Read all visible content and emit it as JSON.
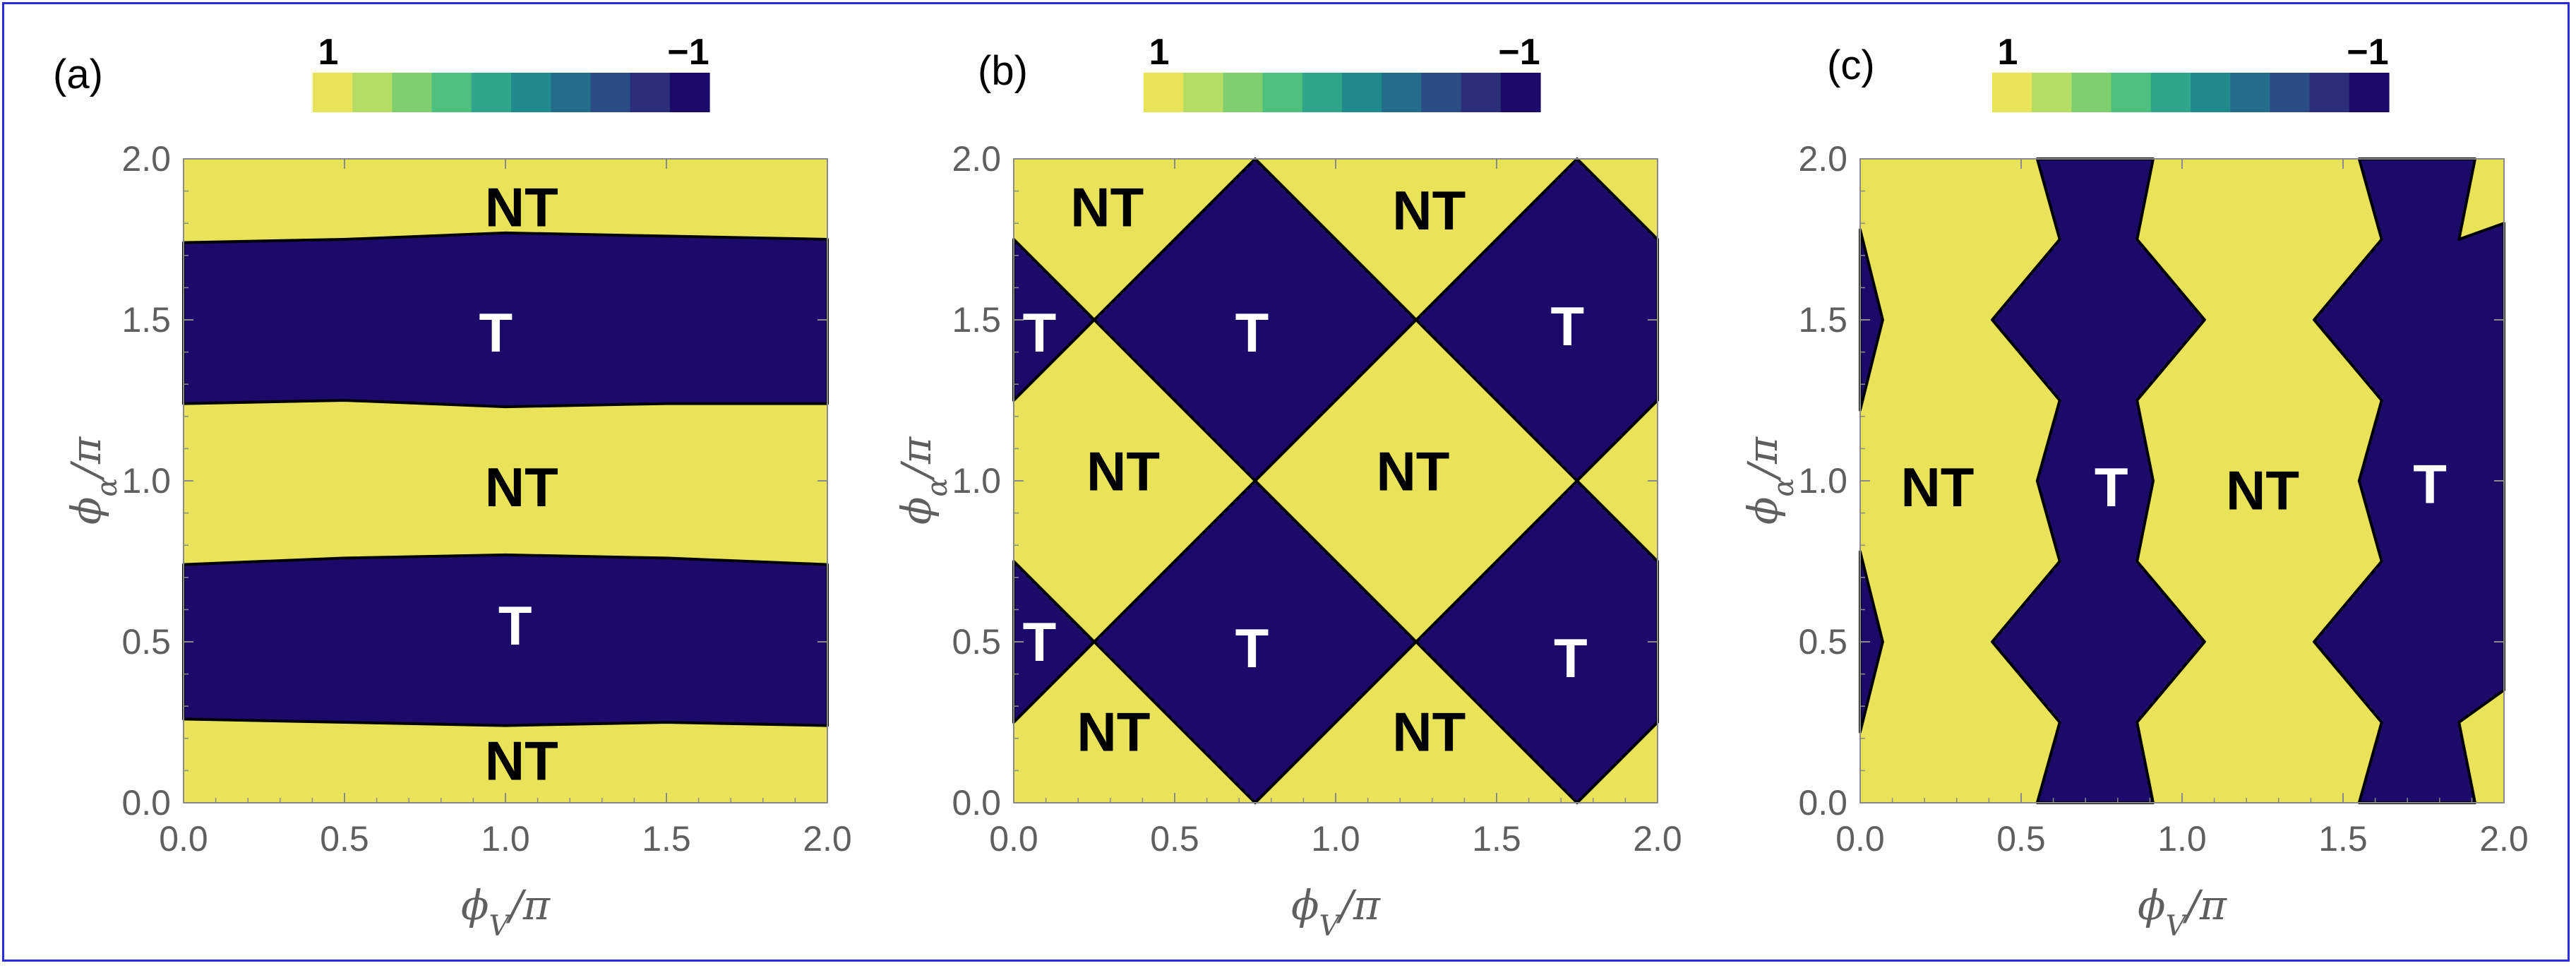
{
  "colors": {
    "nontopological": "#e9e35a",
    "topological": "#1b0a6a",
    "axis": "#8a8a8a",
    "tick_text": "#5f5f5f",
    "border": "#2a2ae0"
  },
  "colorbar": {
    "max_label": "1",
    "min_label": "−1",
    "swatches": [
      "#e9e35a",
      "#b5dc63",
      "#7fcf6f",
      "#4dc080",
      "#2fa68a",
      "#218a8c",
      "#236c8a",
      "#2a4d86",
      "#2a2f78",
      "#1b0a6a"
    ]
  },
  "chart_data": [
    {
      "panel": "(a)",
      "type": "heatmap",
      "xlabel": "ϕV/π",
      "ylabel": "ϕα/π",
      "xlim": [
        0,
        2
      ],
      "ylim": [
        0,
        2
      ],
      "xticks": [
        "0.0",
        "0.5",
        "1.0",
        "1.5",
        "2.0"
      ],
      "yticks": [
        "0.0",
        "0.5",
        "1.0",
        "1.5",
        "2.0"
      ],
      "value_range": [
        1,
        -1
      ],
      "description": "horizontal topological bands (value −1) in ϕα ≈ 0.25–0.75 and 1.25–1.75, non-topological (value 1) elsewhere",
      "topological_regions": [
        [
          [
            0,
            0.26
          ],
          [
            0.5,
            0.25
          ],
          [
            1,
            0.24
          ],
          [
            1.5,
            0.25
          ],
          [
            2,
            0.24
          ],
          [
            2,
            0.74
          ],
          [
            1.5,
            0.76
          ],
          [
            1,
            0.77
          ],
          [
            0.5,
            0.76
          ],
          [
            0,
            0.74
          ]
        ],
        [
          [
            0,
            1.24
          ],
          [
            0.5,
            1.25
          ],
          [
            1,
            1.23
          ],
          [
            1.5,
            1.24
          ],
          [
            2,
            1.24
          ],
          [
            2,
            1.75
          ],
          [
            1.5,
            1.76
          ],
          [
            1,
            1.77
          ],
          [
            0.5,
            1.75
          ],
          [
            0,
            1.74
          ]
        ]
      ],
      "labels": [
        {
          "text": "NT",
          "x": 1.05,
          "y": 1.85,
          "kind": "NT"
        },
        {
          "text": "T",
          "x": 0.97,
          "y": 1.46,
          "kind": "T"
        },
        {
          "text": "NT",
          "x": 1.05,
          "y": 0.98,
          "kind": "NT"
        },
        {
          "text": "T",
          "x": 1.03,
          "y": 0.55,
          "kind": "T"
        },
        {
          "text": "NT",
          "x": 1.05,
          "y": 0.13,
          "kind": "NT"
        }
      ]
    },
    {
      "panel": "(b)",
      "type": "heatmap",
      "xlabel": "ϕV/π",
      "ylabel": "ϕα/π",
      "xlim": [
        0,
        2
      ],
      "ylim": [
        0,
        2
      ],
      "xticks": [
        "0.0",
        "0.5",
        "1.0",
        "1.5",
        "2.0"
      ],
      "yticks": [
        "0.0",
        "0.5",
        "1.0",
        "1.5",
        "2.0"
      ],
      "value_range": [
        1,
        -1
      ],
      "description": "checkerboard of diamond-shaped topological regions (value −1) centred at ϕV = 0.75, 1.75 and ϕα = 0.5, 1.5",
      "topological_regions": [
        [
          [
            0.75,
            0
          ],
          [
            1.25,
            0.5
          ],
          [
            0.75,
            1
          ],
          [
            0.25,
            0.5
          ]
        ],
        [
          [
            0.75,
            1
          ],
          [
            1.25,
            1.5
          ],
          [
            0.75,
            2
          ],
          [
            0.25,
            1.5
          ]
        ],
        [
          [
            1.75,
            0
          ],
          [
            2,
            0.25
          ],
          [
            2,
            0.75
          ],
          [
            1.75,
            1
          ],
          [
            1.25,
            0.5
          ]
        ],
        [
          [
            1.75,
            1
          ],
          [
            2,
            1.25
          ],
          [
            2,
            1.75
          ],
          [
            1.75,
            2
          ],
          [
            1.25,
            1.5
          ]
        ],
        [
          [
            0,
            0.25
          ],
          [
            0.25,
            0.5
          ],
          [
            0,
            0.75
          ]
        ],
        [
          [
            0,
            1.25
          ],
          [
            0.25,
            1.5
          ],
          [
            0,
            1.75
          ]
        ]
      ],
      "labels": [
        {
          "text": "NT",
          "x": 0.29,
          "y": 1.85,
          "kind": "NT"
        },
        {
          "text": "NT",
          "x": 1.29,
          "y": 1.84,
          "kind": "NT"
        },
        {
          "text": "T",
          "x": 0.08,
          "y": 1.46,
          "kind": "T"
        },
        {
          "text": "T",
          "x": 0.74,
          "y": 1.46,
          "kind": "T"
        },
        {
          "text": "T",
          "x": 1.72,
          "y": 1.48,
          "kind": "T"
        },
        {
          "text": "NT",
          "x": 0.34,
          "y": 1.03,
          "kind": "NT"
        },
        {
          "text": "NT",
          "x": 1.24,
          "y": 1.03,
          "kind": "NT"
        },
        {
          "text": "T",
          "x": 0.08,
          "y": 0.5,
          "kind": "T"
        },
        {
          "text": "T",
          "x": 0.74,
          "y": 0.48,
          "kind": "T"
        },
        {
          "text": "T",
          "x": 1.73,
          "y": 0.45,
          "kind": "T"
        },
        {
          "text": "NT",
          "x": 0.31,
          "y": 0.22,
          "kind": "NT"
        },
        {
          "text": "NT",
          "x": 1.29,
          "y": 0.22,
          "kind": "NT"
        }
      ]
    },
    {
      "panel": "(c)",
      "type": "heatmap",
      "xlabel": "ϕV/π",
      "ylabel": "ϕα/π",
      "xlim": [
        0,
        2
      ],
      "ylim": [
        0,
        2
      ],
      "xticks": [
        "0.0",
        "0.5",
        "1.0",
        "1.5",
        "2.0"
      ],
      "yticks": [
        "0.0",
        "0.5",
        "1.0",
        "1.5",
        "2.0"
      ],
      "value_range": [
        1,
        -1
      ],
      "description": "vertical topological bands (value −1) around ϕV ≈ 0.75 and 1.75 with width oscillating in ϕα, plus edge slivers at ϕV ≈ 0",
      "topological_regions": [
        [
          [
            0.55,
            2
          ],
          [
            0.62,
            1.75
          ],
          [
            0.41,
            1.5
          ],
          [
            0.62,
            1.25
          ],
          [
            0.55,
            1
          ],
          [
            0.62,
            0.75
          ],
          [
            0.41,
            0.5
          ],
          [
            0.62,
            0.25
          ],
          [
            0.55,
            0
          ],
          [
            0.91,
            0
          ],
          [
            0.86,
            0.25
          ],
          [
            1.07,
            0.5
          ],
          [
            0.86,
            0.75
          ],
          [
            0.91,
            1
          ],
          [
            0.86,
            1.25
          ],
          [
            1.07,
            1.5
          ],
          [
            0.86,
            1.75
          ],
          [
            0.91,
            2
          ]
        ],
        [
          [
            1.55,
            2
          ],
          [
            1.62,
            1.75
          ],
          [
            1.41,
            1.5
          ],
          [
            1.62,
            1.25
          ],
          [
            1.55,
            1
          ],
          [
            1.62,
            0.75
          ],
          [
            1.41,
            0.5
          ],
          [
            1.62,
            0.25
          ],
          [
            1.55,
            0
          ],
          [
            1.91,
            0
          ],
          [
            1.86,
            0.25
          ],
          [
            2,
            0.35
          ],
          [
            2,
            1.8
          ],
          [
            1.86,
            1.75
          ],
          [
            1.91,
            2
          ]
        ],
        [
          [
            0,
            0.22
          ],
          [
            0.07,
            0.5
          ],
          [
            0,
            0.78
          ]
        ],
        [
          [
            0,
            1.22
          ],
          [
            0.07,
            1.5
          ],
          [
            0,
            1.78
          ]
        ]
      ],
      "labels": [
        {
          "text": "NT",
          "x": 0.24,
          "y": 0.98,
          "kind": "NT"
        },
        {
          "text": "T",
          "x": 0.78,
          "y": 0.98,
          "kind": "T"
        },
        {
          "text": "NT",
          "x": 1.25,
          "y": 0.97,
          "kind": "NT"
        },
        {
          "text": "T",
          "x": 1.77,
          "y": 0.99,
          "kind": "T"
        }
      ]
    }
  ]
}
